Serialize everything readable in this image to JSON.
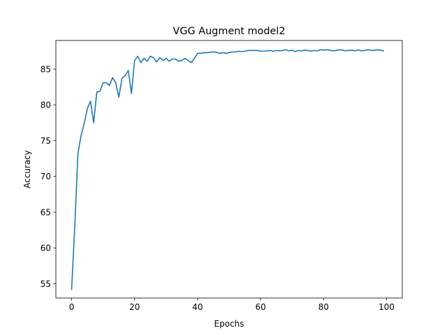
{
  "chart_data": {
    "type": "line",
    "title": "VGG Augment model2",
    "xlabel": "Epochs",
    "ylabel": "Accuracy",
    "xlim": [
      -5,
      105
    ],
    "ylim": [
      53,
      89
    ],
    "xticks": [
      0,
      20,
      40,
      60,
      80,
      100
    ],
    "yticks": [
      55,
      60,
      65,
      70,
      75,
      80,
      85
    ],
    "grid": false,
    "series": [
      {
        "color": "#1f77b4",
        "x": [
          0,
          1,
          2,
          3,
          4,
          5,
          6,
          7,
          8,
          9,
          10,
          11,
          12,
          13,
          14,
          15,
          16,
          17,
          18,
          19,
          20,
          21,
          22,
          23,
          24,
          25,
          26,
          27,
          28,
          29,
          30,
          31,
          32,
          33,
          34,
          35,
          36,
          37,
          38,
          39,
          40,
          41,
          42,
          43,
          44,
          45,
          46,
          47,
          48,
          49,
          50,
          51,
          52,
          53,
          54,
          55,
          56,
          57,
          58,
          59,
          60,
          61,
          62,
          63,
          64,
          65,
          66,
          67,
          68,
          69,
          70,
          71,
          72,
          73,
          74,
          75,
          76,
          77,
          78,
          79,
          80,
          81,
          82,
          83,
          84,
          85,
          86,
          87,
          88,
          89,
          90,
          91,
          92,
          93,
          94,
          95,
          96,
          97,
          98,
          99
        ],
        "values": [
          54.2,
          63.0,
          73.2,
          75.7,
          77.4,
          79.5,
          80.5,
          77.5,
          81.8,
          81.9,
          83.1,
          83.1,
          82.7,
          83.8,
          83.1,
          81.1,
          83.7,
          84.1,
          84.8,
          81.6,
          86.2,
          86.8,
          85.9,
          86.5,
          86.1,
          86.8,
          86.6,
          86.0,
          86.6,
          86.2,
          86.5,
          86.1,
          86.4,
          86.4,
          86.1,
          86.2,
          86.5,
          86.2,
          85.9,
          86.5,
          87.2,
          87.2,
          87.3,
          87.3,
          87.35,
          87.4,
          87.35,
          87.2,
          87.3,
          87.2,
          87.3,
          87.4,
          87.4,
          87.5,
          87.45,
          87.5,
          87.6,
          87.6,
          87.6,
          87.6,
          87.5,
          87.5,
          87.55,
          87.6,
          87.5,
          87.6,
          87.55,
          87.6,
          87.7,
          87.55,
          87.65,
          87.45,
          87.6,
          87.55,
          87.65,
          87.6,
          87.5,
          87.6,
          87.55,
          87.7,
          87.65,
          87.7,
          87.65,
          87.55,
          87.6,
          87.7,
          87.65,
          87.55,
          87.6,
          87.65,
          87.55,
          87.7,
          87.55,
          87.6,
          87.7,
          87.65,
          87.6,
          87.7,
          87.65,
          87.55
        ]
      }
    ]
  }
}
